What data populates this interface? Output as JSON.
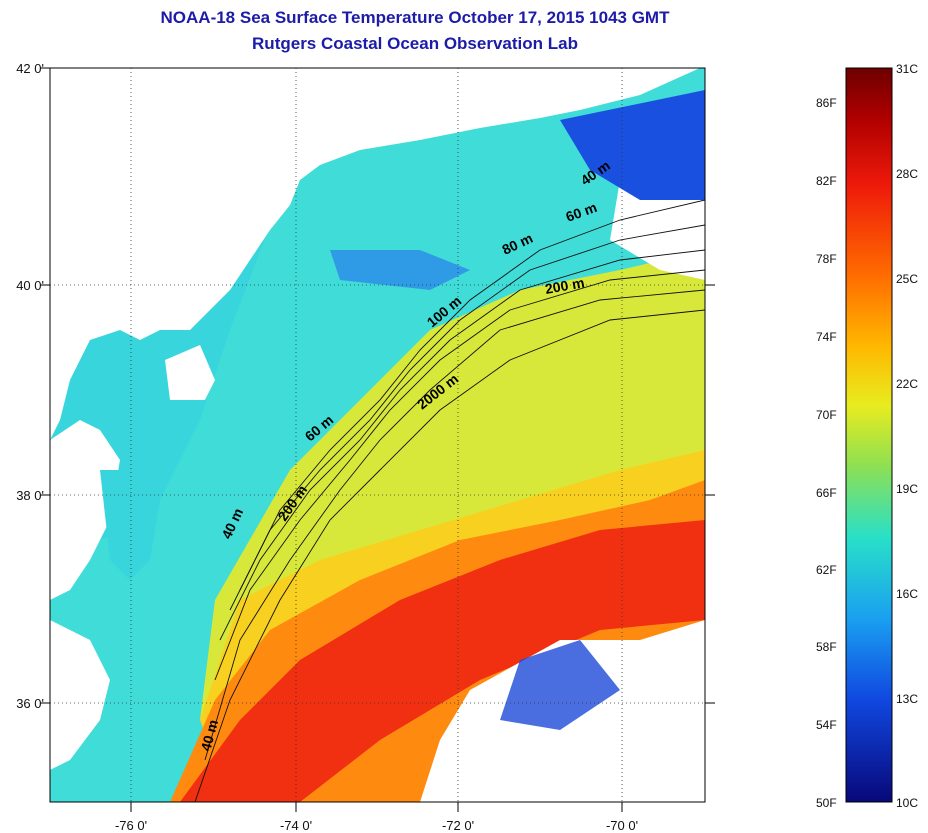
{
  "title": {
    "line1": "NOAA-18 Sea Surface Temperature October 17, 2015 1043 GMT",
    "line2": "Rutgers Coastal Ocean Observation Lab"
  },
  "lat_labels": [
    "42 0'",
    "40 0'",
    "38 0'",
    "36 0'"
  ],
  "lon_labels": [
    "-76 0'",
    "-74 0'",
    "-72 0'",
    "-70 0'"
  ],
  "depth_labels": [
    "40 m",
    "60 m",
    "80 m",
    "200 m",
    "100 m",
    "2000 m",
    "60 m",
    "200 m",
    "40 m",
    "40 m"
  ],
  "colorbar": {
    "f_labels": [
      "86F",
      "82F",
      "78F",
      "74F",
      "70F",
      "66F",
      "62F",
      "58F",
      "54F",
      "50F"
    ],
    "c_labels": [
      "31C",
      "28C",
      "25C",
      "22C",
      "19C",
      "16C",
      "13C",
      "10C"
    ],
    "colors": [
      "#7a0000",
      "#d01010",
      "#ff5a00",
      "#ffa000",
      "#f0e020",
      "#a0e040",
      "#30e0c0",
      "#20a0f0",
      "#1050e0",
      "#0a0aa0"
    ]
  }
}
